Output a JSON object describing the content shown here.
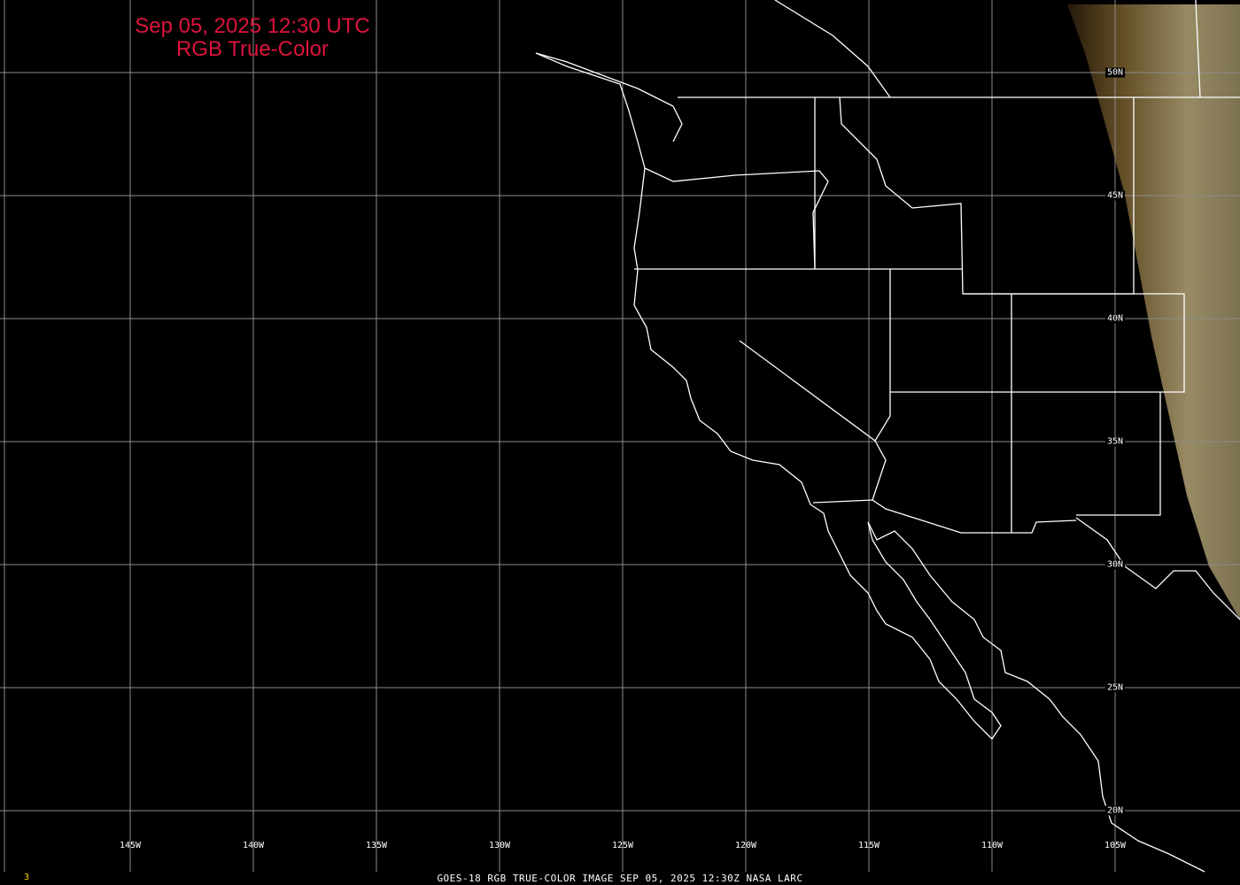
{
  "title": {
    "line1": "Sep 05, 2025 12:30 UTC",
    "line2": "RGB True-Color",
    "color": "#dc143c"
  },
  "longitude_labels": [
    "145W",
    "140W",
    "135W",
    "130W",
    "125W",
    "120W",
    "115W",
    "110W",
    "105W"
  ],
  "latitude_labels": [
    "50N",
    "45N",
    "40N",
    "35N",
    "30N",
    "25N",
    "20N"
  ],
  "footer": "GOES-18 RGB TRUE-COLOR IMAGE   SEP 05, 2025 12:30Z   NASA LARC",
  "frame_number": "3",
  "colors": {
    "grid": "#8c8c8c",
    "borders": "#ffffff",
    "sunlit_land": "#7a6a3a"
  }
}
